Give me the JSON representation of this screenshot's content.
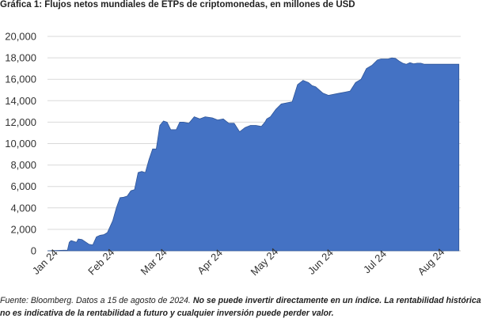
{
  "chart_data": {
    "type": "area",
    "title": "Gráfica 1: Flujos netos mundiales de ETPs de criptomonedas, en millones de USD",
    "xlabel": "",
    "ylabel": "",
    "ylim": [
      0,
      20000
    ],
    "y_ticks": [
      0,
      2000,
      4000,
      6000,
      8000,
      10000,
      12000,
      14000,
      16000,
      18000,
      20000
    ],
    "y_tick_labels": [
      "0",
      "2,000",
      "4,000",
      "6,000",
      "8,000",
      "10,000",
      "12,000",
      "14,000",
      "16,000",
      "18,000",
      "20,000"
    ],
    "x_tick_labels": [
      "Jan 24",
      "Feb 24",
      "Mar 24",
      "Apr 24",
      "May 24",
      "Jun 24",
      "Jul 24",
      "Aug 24"
    ],
    "x_ticks": [
      "2024-01-01",
      "2024-02-01",
      "2024-03-01",
      "2024-04-01",
      "2024-05-01",
      "2024-06-01",
      "2024-07-01",
      "2024-08-01"
    ],
    "grid": "horizontal",
    "color": "#4472C4",
    "series": [
      {
        "x": [
          "2024-01-01",
          "2024-01-10",
          "2024-01-12",
          "2024-01-13",
          "2024-01-14",
          "2024-01-15",
          "2024-01-16",
          "2024-01-17",
          "2024-01-18",
          "2024-01-20",
          "2024-01-24",
          "2024-01-26",
          "2024-01-28",
          "2024-01-30",
          "2024-02-01",
          "2024-02-03",
          "2024-02-06",
          "2024-02-08",
          "2024-02-10",
          "2024-02-12",
          "2024-02-14",
          "2024-02-16",
          "2024-02-18",
          "2024-02-20",
          "2024-02-22",
          "2024-02-24",
          "2024-02-26",
          "2024-02-28",
          "2024-03-01",
          "2024-03-03",
          "2024-03-05",
          "2024-03-07",
          "2024-03-09",
          "2024-03-12",
          "2024-03-14",
          "2024-03-16",
          "2024-03-19",
          "2024-03-22",
          "2024-03-25",
          "2024-03-28",
          "2024-04-01",
          "2024-04-04",
          "2024-04-07",
          "2024-04-10",
          "2024-04-13",
          "2024-04-16",
          "2024-04-19",
          "2024-04-22",
          "2024-04-25",
          "2024-04-28",
          "2024-04-30",
          "2024-05-01",
          "2024-05-03",
          "2024-05-06",
          "2024-05-09",
          "2024-05-12",
          "2024-05-15",
          "2024-05-18",
          "2024-05-21",
          "2024-05-24",
          "2024-05-26",
          "2024-05-28",
          "2024-05-30",
          "2024-06-01",
          "2024-06-04",
          "2024-06-07",
          "2024-06-10",
          "2024-06-13",
          "2024-06-16",
          "2024-06-19",
          "2024-06-22",
          "2024-06-25",
          "2024-06-28",
          "2024-07-01",
          "2024-07-03",
          "2024-07-05",
          "2024-07-07",
          "2024-07-09",
          "2024-07-11",
          "2024-07-13",
          "2024-07-15",
          "2024-07-17",
          "2024-07-19",
          "2024-07-21",
          "2024-07-23",
          "2024-07-25",
          "2024-07-27",
          "2024-07-29",
          "2024-07-31",
          "2024-08-02",
          "2024-08-04",
          "2024-08-06",
          "2024-08-08",
          "2024-08-10",
          "2024-08-12",
          "2024-08-15"
        ],
        "values": [
          0,
          50,
          50,
          800,
          950,
          900,
          850,
          800,
          1100,
          1050,
          600,
          550,
          1300,
          1450,
          1500,
          1700,
          2800,
          4000,
          4950,
          5000,
          5100,
          5600,
          5700,
          7300,
          7400,
          7300,
          8500,
          9500,
          9500,
          11700,
          12100,
          12000,
          11300,
          11300,
          12000,
          12000,
          11900,
          12500,
          12300,
          12500,
          12400,
          12200,
          12300,
          11900,
          11900,
          11100,
          11500,
          11700,
          11700,
          11600,
          12000,
          12300,
          12500,
          13200,
          13700,
          13800,
          13900,
          15500,
          15900,
          15700,
          15400,
          15300,
          15000,
          14700,
          14500,
          14600,
          14700,
          14800,
          14900,
          15700,
          16000,
          17000,
          17300,
          17800,
          17900,
          17900,
          17900,
          18000,
          17950,
          17700,
          17500,
          17400,
          17550,
          17450,
          17500,
          17500,
          17400,
          17400,
          17400,
          17400,
          17400,
          17400,
          17400,
          17400,
          17400,
          17400
        ]
      }
    ]
  },
  "footnote": {
    "part1": "Fuente: Bloomberg. Datos a 15 de agosto de 2024. ",
    "part2": "No se puede invertir directamente en un índice. La rentabilidad histórica no es indicativa de la rentabilidad a futuro y cualquier inversión puede perder valor."
  }
}
